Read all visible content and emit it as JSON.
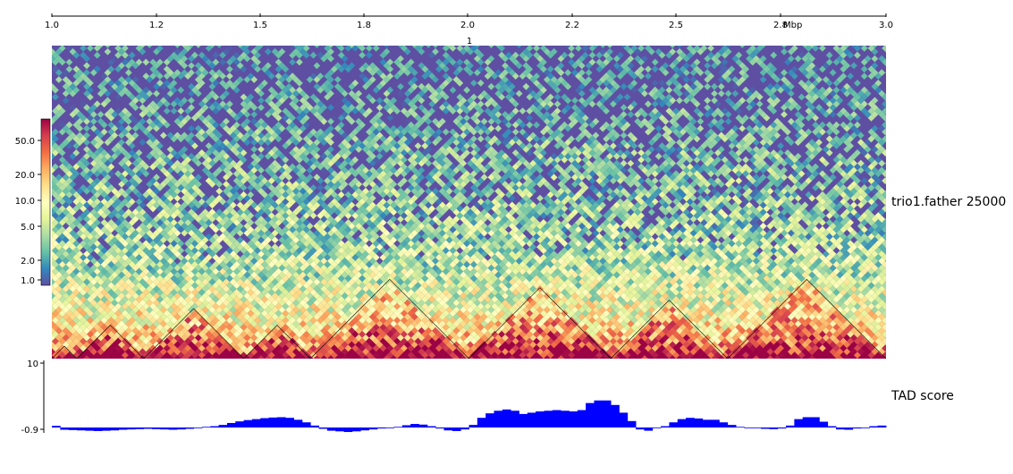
{
  "colors": {
    "background": "#ffffff",
    "tad_bars": "#0000ff",
    "tad_outline": "#000000",
    "heatmap_low": "#5e4fa2",
    "heatmap_high": "#9e0142"
  },
  "chart_data": [
    {
      "type": "heatmap",
      "title": "",
      "x_axis": {
        "tick_labels": [
          "1.0",
          "1.2",
          "1.5",
          "1.8",
          "2.0",
          "2.2",
          "2.5",
          "2.8",
          "3.0"
        ],
        "unit_label": "Mbp",
        "chromosome_label": "1"
      },
      "colorbar": {
        "tick_labels": [
          "50.0",
          "20.0",
          "10.0",
          "5.0",
          "2.0",
          "1.0"
        ],
        "colormap": "Spectral_r",
        "scale": "log"
      },
      "track_label": "trio1.father 25000",
      "tad_domains_mbp": [
        [
          1.0,
          1.06
        ],
        [
          1.06,
          1.22
        ],
        [
          1.22,
          1.46
        ],
        [
          1.46,
          1.62
        ],
        [
          1.62,
          2.0
        ],
        [
          2.0,
          2.34
        ],
        [
          2.34,
          2.62
        ],
        [
          2.62,
          3.0
        ]
      ],
      "note": "Triangular Hi-C contact map with TAD boundaries"
    },
    {
      "type": "bar",
      "track_label": "TAD score",
      "y_axis": {
        "tick_labels": [
          "10",
          "-0.9"
        ],
        "ylim": [
          -0.9,
          10
        ]
      },
      "x_range_mbp": [
        1.0,
        3.0
      ],
      "values": [
        0.25,
        -0.35,
        -0.4,
        -0.45,
        -0.5,
        -0.55,
        -0.5,
        -0.45,
        -0.35,
        -0.3,
        -0.25,
        -0.2,
        -0.25,
        -0.3,
        -0.35,
        -0.3,
        -0.2,
        -0.1,
        0.1,
        0.2,
        0.4,
        0.7,
        0.95,
        1.15,
        1.3,
        1.45,
        1.55,
        1.6,
        1.5,
        1.2,
        0.8,
        0.3,
        -0.2,
        -0.5,
        -0.6,
        -0.7,
        -0.6,
        -0.45,
        -0.3,
        -0.15,
        -0.05,
        0.1,
        0.35,
        0.55,
        0.45,
        0.2,
        -0.15,
        -0.45,
        -0.55,
        -0.3,
        0.4,
        1.5,
        2.2,
        2.6,
        2.8,
        2.6,
        2.1,
        2.3,
        2.5,
        2.6,
        2.7,
        2.6,
        2.5,
        2.7,
        3.8,
        4.2,
        4.2,
        3.5,
        2.3,
        1.0,
        -0.3,
        -0.5,
        -0.1,
        0.2,
        0.8,
        1.3,
        1.5,
        1.4,
        1.2,
        1.2,
        0.8,
        0.4,
        0.1,
        0.0,
        -0.1,
        -0.2,
        -0.25,
        -0.15,
        0.3,
        1.3,
        1.6,
        1.6,
        0.9,
        0.2,
        -0.3,
        -0.35,
        -0.15,
        0.0,
        0.2,
        0.3
      ]
    }
  ]
}
